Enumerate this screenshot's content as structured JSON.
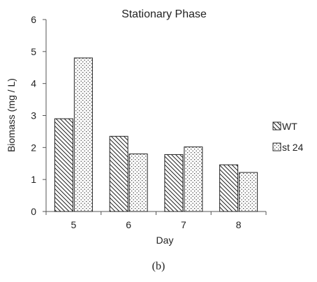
{
  "chart_data": {
    "type": "bar",
    "title": "Stationary Phase",
    "xlabel": "Day",
    "ylabel": "Biomass  (mg / L)",
    "categories": [
      "5",
      "6",
      "7",
      "8"
    ],
    "series": [
      {
        "name": "WT",
        "values": [
          2.9,
          2.35,
          1.78,
          1.46
        ],
        "pattern": "diagonal-hatch"
      },
      {
        "name": "st 24",
        "values": [
          4.8,
          1.8,
          2.02,
          1.22
        ],
        "pattern": "dots"
      }
    ],
    "ylim": [
      0,
      6
    ],
    "yticks": [
      0,
      1,
      2,
      3,
      4,
      5,
      6
    ],
    "grid": false,
    "legend_position": "right"
  },
  "caption": "(b)"
}
